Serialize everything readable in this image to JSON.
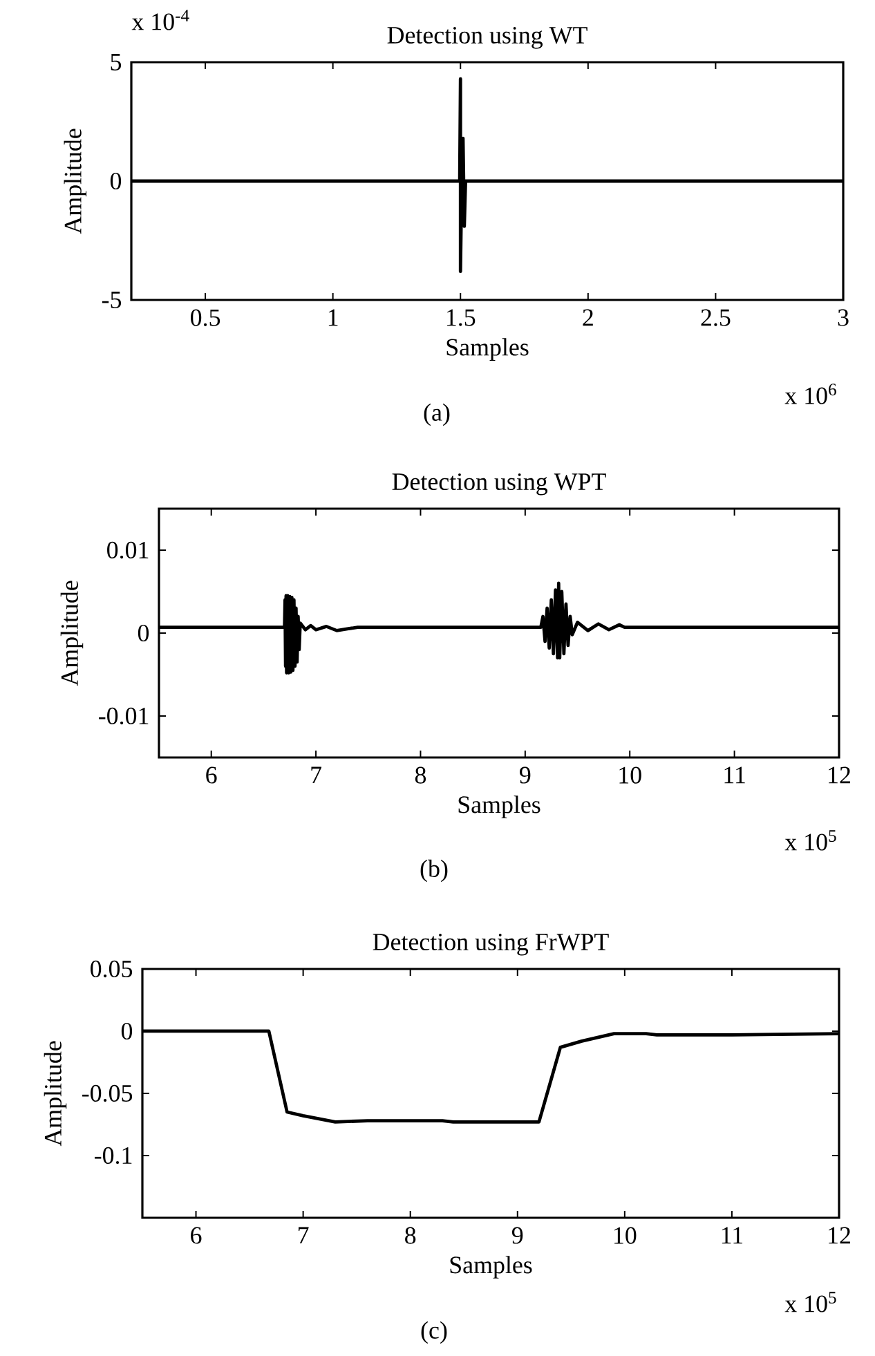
{
  "chart_data": [
    {
      "type": "line",
      "title": "Detection using WT",
      "xlabel": "Samples",
      "ylabel": "Amplitude",
      "xlim": [
        0.21,
        3
      ],
      "ylim": [
        -5,
        5
      ],
      "xticks": [
        0.5,
        1,
        1.5,
        2,
        2.5,
        3
      ],
      "yticks": [
        -5,
        0,
        5
      ],
      "grid": false,
      "color": "#000000",
      "x": [
        0.21,
        1.497,
        1.5,
        1.5,
        1.505,
        1.51,
        1.515,
        1.52,
        3
      ],
      "values": [
        0,
        0,
        4.3,
        -3.8,
        0,
        1.8,
        -1.9,
        0,
        0
      ],
      "annotations": [
        "x 10$^{-4}$",
        "x 10$^{6}$",
        "(a)"
      ]
    },
    {
      "type": "line",
      "title": "Detection using WPT",
      "xlabel": "Samples",
      "ylabel": "Amplitude",
      "xlim": [
        5.5,
        12
      ],
      "ylim": [
        -0.015,
        0.015
      ],
      "xticks": [
        6,
        7,
        8,
        9,
        10,
        11,
        12
      ],
      "yticks": [
        -0.01,
        0,
        0.01
      ],
      "grid": false,
      "color": "#000000",
      "x": [
        5.5,
        6.7,
        6.705,
        6.71,
        6.715,
        6.72,
        6.73,
        6.74,
        6.75,
        6.76,
        6.77,
        6.78,
        6.79,
        6.8,
        6.81,
        6.82,
        6.83,
        6.84,
        6.85,
        6.9,
        6.95,
        7.0,
        7.1,
        7.2,
        7.3,
        7.4,
        9.15,
        9.17,
        9.19,
        9.21,
        9.23,
        9.25,
        9.27,
        9.29,
        9.31,
        9.32,
        9.33,
        9.35,
        9.37,
        9.39,
        9.41,
        9.43,
        9.45,
        9.5,
        9.6,
        9.7,
        9.8,
        9.9,
        9.95,
        12
      ],
      "values": [
        0.0007,
        0.0007,
        0.004,
        -0.004,
        0.0045,
        -0.0048,
        0.0045,
        -0.0048,
        0.0044,
        -0.0047,
        0.0043,
        -0.0045,
        0.004,
        -0.004,
        0.003,
        -0.0035,
        0.002,
        -0.002,
        0.0012,
        0.0004,
        0.0009,
        0.0004,
        0.0008,
        0.0003,
        0.0005,
        0.0007,
        0.0007,
        0.002,
        -0.001,
        0.003,
        -0.0018,
        0.004,
        -0.0025,
        0.0052,
        -0.003,
        0.006,
        -0.003,
        0.005,
        -0.0025,
        0.0035,
        -0.0015,
        0.002,
        -0.0002,
        0.0013,
        0.0003,
        0.0011,
        0.0004,
        0.001,
        0.0007,
        0.0007
      ],
      "annotations": [
        "x 10$^{5}$",
        "(b)"
      ]
    },
    {
      "type": "line",
      "title": "Detection using FrWPT",
      "xlabel": "Samples",
      "ylabel": "Amplitude",
      "xlim": [
        5.5,
        12
      ],
      "ylim": [
        -0.15,
        0.05
      ],
      "xticks": [
        6,
        7,
        8,
        9,
        10,
        11,
        12
      ],
      "yticks": [
        -0.1,
        -0.05,
        0,
        0.05
      ],
      "grid": false,
      "color": "#000000",
      "x": [
        5.5,
        6.68,
        6.85,
        7.0,
        7.3,
        7.6,
        8.3,
        8.4,
        9.2,
        9.4,
        9.6,
        9.9,
        10.2,
        10.3,
        11,
        12
      ],
      "values": [
        0,
        0,
        -0.065,
        -0.068,
        -0.073,
        -0.072,
        -0.072,
        -0.073,
        -0.073,
        -0.013,
        -0.008,
        -0.002,
        -0.002,
        -0.003,
        -0.003,
        -0.002
      ],
      "annotations": [
        "x 10$^{5}$",
        "(c)"
      ]
    }
  ]
}
